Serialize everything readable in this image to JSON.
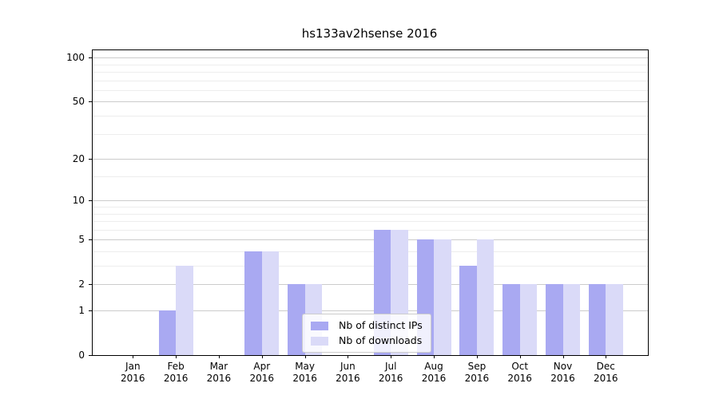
{
  "chart_data": {
    "type": "bar",
    "title": "hs133av2hsense 2016",
    "x_axis": {
      "months": [
        "Jan",
        "Feb",
        "Mar",
        "Apr",
        "May",
        "Jun",
        "Jul",
        "Aug",
        "Sep",
        "Oct",
        "Nov",
        "Dec"
      ],
      "year": "2016"
    },
    "y_axis": {
      "scale": "log1p",
      "ticks": [
        0,
        1,
        2,
        5,
        10,
        20,
        50,
        100
      ],
      "minor_ticks": [
        3,
        4,
        6,
        7,
        8,
        9,
        15,
        30,
        40,
        60,
        70,
        80,
        90
      ],
      "max": 112
    },
    "series": [
      {
        "name": "Nb of distinct IPs",
        "color": "#a9a9f2",
        "values": [
          0,
          1,
          0,
          4,
          2,
          0,
          6,
          5,
          3,
          2,
          2,
          2
        ]
      },
      {
        "name": "Nb of downloads",
        "color": "#dadaf8",
        "values": [
          0,
          3,
          0,
          4,
          2,
          0,
          6,
          5,
          5,
          2,
          2,
          2
        ]
      }
    ],
    "legend": {
      "position": "lower center"
    },
    "grid": true,
    "colors": {
      "major_grid": "#cccccc",
      "minor_grid": "#ededed",
      "spine": "#000000",
      "background": "#ffffff"
    }
  }
}
